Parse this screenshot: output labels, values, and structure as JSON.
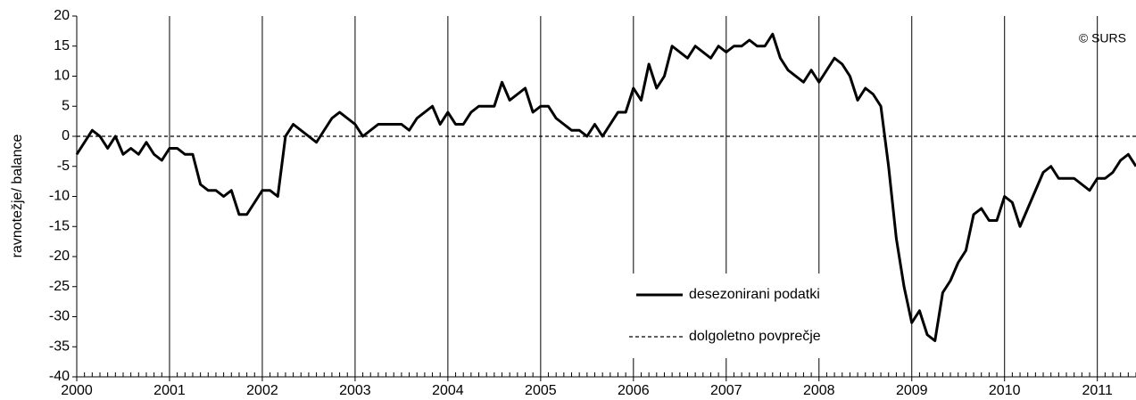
{
  "chart_data": {
    "type": "line",
    "y_label": "ravnotežje/ balance",
    "annotation": "© SURS",
    "categories": [
      "2000",
      null,
      null,
      null,
      null,
      null,
      null,
      null,
      null,
      null,
      null,
      null,
      "2001",
      null,
      null,
      null,
      null,
      null,
      null,
      null,
      null,
      null,
      null,
      null,
      "2002",
      null,
      null,
      null,
      null,
      null,
      null,
      null,
      null,
      null,
      null,
      null,
      "2003",
      null,
      null,
      null,
      null,
      null,
      null,
      null,
      null,
      null,
      null,
      null,
      "2004",
      null,
      null,
      null,
      null,
      null,
      null,
      null,
      null,
      null,
      null,
      null,
      "2005",
      null,
      null,
      null,
      null,
      null,
      null,
      null,
      null,
      null,
      null,
      null,
      "2006",
      null,
      null,
      null,
      null,
      null,
      null,
      null,
      null,
      null,
      null,
      null,
      "2007",
      null,
      null,
      null,
      null,
      null,
      null,
      null,
      null,
      null,
      null,
      null,
      "2008",
      null,
      null,
      null,
      null,
      null,
      null,
      null,
      null,
      null,
      null,
      null,
      "2009",
      null,
      null,
      null,
      null,
      null,
      null,
      null,
      null,
      null,
      null,
      null,
      "2010",
      null,
      null,
      null,
      null,
      null,
      null,
      null,
      null,
      null,
      null,
      null,
      "2011",
      null,
      null,
      null,
      null,
      null
    ],
    "series": [
      {
        "name": "desezonirani podatki",
        "color": "#000000",
        "values": [
          -3,
          -1,
          1,
          0,
          -2,
          0,
          -3,
          -2,
          -3,
          -1,
          -3,
          -4,
          -2,
          -2,
          -3,
          -3,
          -8,
          -9,
          -9,
          -10,
          -9,
          -13,
          -13,
          -11,
          -9,
          -9,
          -10,
          0,
          2,
          1,
          0,
          -1,
          1,
          3,
          4,
          3,
          2,
          0,
          1,
          2,
          2,
          2,
          2,
          1,
          3,
          4,
          5,
          2,
          4,
          2,
          2,
          4,
          5,
          5,
          5,
          9,
          6,
          7,
          8,
          4,
          5,
          5,
          3,
          2,
          1,
          1,
          0,
          2,
          0,
          2,
          4,
          4,
          8,
          6,
          12,
          8,
          10,
          15,
          14,
          13,
          15,
          14,
          13,
          15,
          14,
          15,
          15,
          16,
          15,
          15,
          17,
          13,
          11,
          10,
          9,
          11,
          9,
          11,
          13,
          12,
          10,
          6,
          8,
          7,
          5,
          -5,
          -17,
          -25,
          -31,
          -29,
          -33,
          -34,
          -26,
          -24,
          -21,
          -19,
          -13,
          -12,
          -14,
          -14,
          -10,
          -11,
          -15,
          -12,
          -9,
          -6,
          -5,
          -7,
          -7,
          -7,
          -8,
          -9,
          -7,
          -7,
          -6,
          -4,
          -3,
          -5
        ]
      }
    ],
    "reference_line": {
      "name": "dolgoletno povprečje",
      "value": 0,
      "color": "#000000"
    },
    "ylim": [
      -40,
      20
    ],
    "yticks": [
      -40,
      -35,
      -30,
      -25,
      -20,
      -15,
      -10,
      -5,
      0,
      5,
      10,
      15,
      20
    ]
  }
}
